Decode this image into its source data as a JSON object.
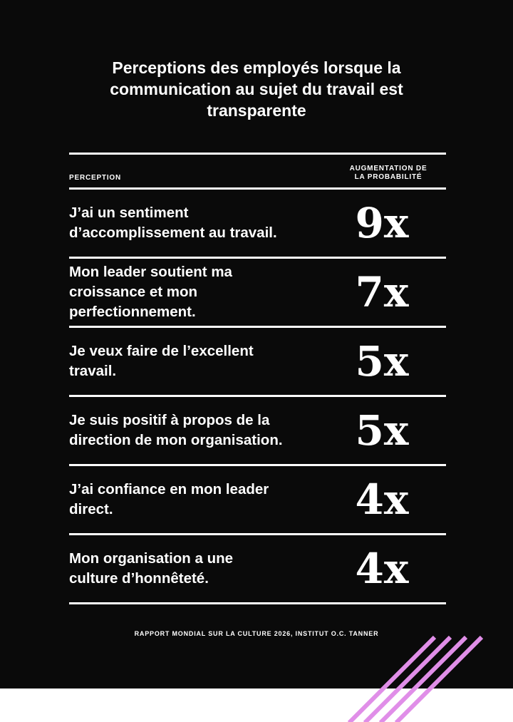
{
  "title": "Perceptions des employés lorsque la communication au sujet du travail est transparente",
  "table": {
    "header_perception": "PERCEPTION",
    "header_increase_line1": "AUGMENTATION DE",
    "header_increase_line2": "LA PROBABILITÉ",
    "rows": [
      {
        "perception": "J’ai un sentiment d’accomplissement au travail.",
        "multiplier": "9x"
      },
      {
        "perception": "Mon leader soutient ma croissance et mon perfectionnement.",
        "multiplier": "7x"
      },
      {
        "perception": "Je veux faire de l’excellent travail.",
        "multiplier": "5x"
      },
      {
        "perception": "Je suis positif à propos de la direction de mon organisation.",
        "multiplier": "5x"
      },
      {
        "perception": "J’ai confiance en mon leader direct.",
        "multiplier": "4x"
      },
      {
        "perception": "Mon organisation a une culture d’honnêteté.",
        "multiplier": "4x"
      }
    ]
  },
  "source": "RAPPORT MONDIAL SUR LA CULTURE 2026, INSTITUT O.C. TANNER",
  "colors": {
    "background": "#0a0a0a",
    "text": "#ffffff",
    "stripe_accent": "#e08ee8"
  }
}
